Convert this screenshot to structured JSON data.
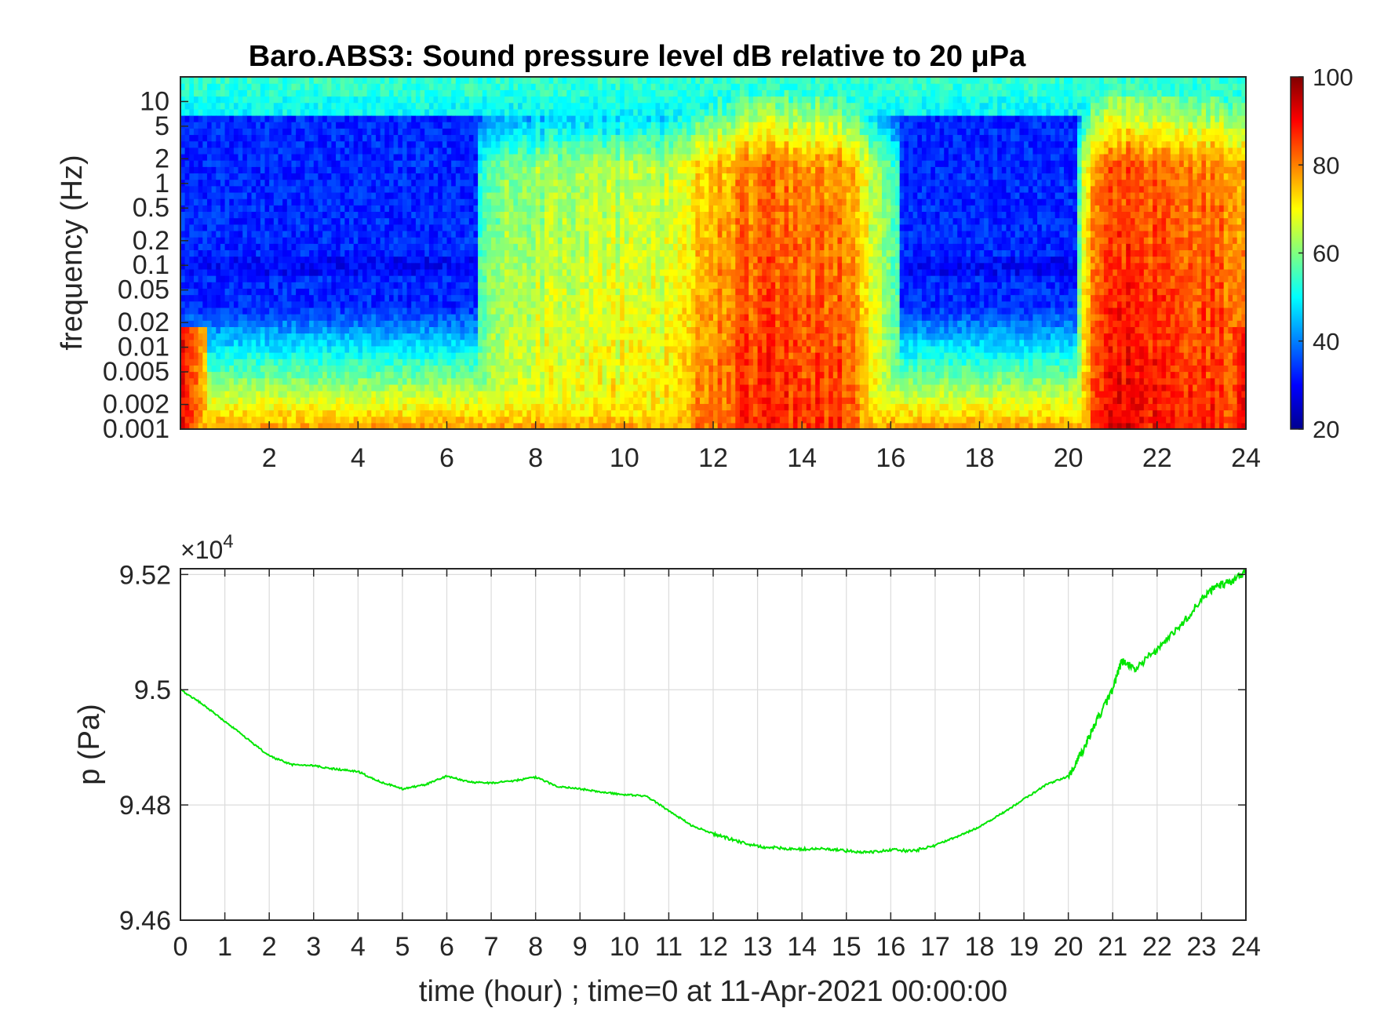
{
  "chart_data": [
    {
      "type": "heatmap",
      "title": "Baro.ABS3: Sound pressure level dB relative to 20 μPa",
      "xlabel": "",
      "ylabel": "frequency (Hz)",
      "xlim": [
        0,
        24
      ],
      "ylim": [
        0.001,
        20
      ],
      "yscale": "log",
      "x_ticks": [
        2,
        4,
        6,
        8,
        10,
        12,
        14,
        16,
        18,
        20,
        22,
        24
      ],
      "x_tick_labels": [
        "2",
        "4",
        "6",
        "8",
        "10",
        "12",
        "14",
        "16",
        "18",
        "20",
        "22",
        "24"
      ],
      "y_ticks": [
        0.001,
        0.002,
        0.005,
        0.01,
        0.02,
        0.05,
        0.1,
        0.2,
        0.5,
        1,
        2,
        5,
        10
      ],
      "y_tick_labels": [
        "0.001",
        "0.002",
        "0.005",
        "0.01",
        "0.02",
        "0.05",
        "0.1",
        "0.2",
        "0.5",
        "1",
        "2",
        "5",
        "10"
      ],
      "colormap": "jet",
      "colorbar": {
        "range": [
          20,
          100
        ],
        "ticks": [
          20,
          40,
          60,
          80,
          100
        ],
        "tick_labels": [
          "20",
          "40",
          "60",
          "80",
          "100"
        ],
        "placement": "right"
      },
      "activity_profile": {
        "description_hours": [
          0,
          0.3,
          1,
          3,
          5,
          6.5,
          6.8,
          7.5,
          9,
          11,
          12,
          13,
          14,
          15,
          16,
          16.6,
          17.5,
          19,
          20,
          20.5,
          21,
          22,
          23,
          24
        ],
        "level_dB": [
          42,
          42,
          42,
          43,
          42,
          42,
          62,
          68,
          70,
          72,
          82,
          88,
          86,
          86,
          62,
          50,
          42,
          42,
          42,
          85,
          92,
          90,
          88,
          84
        ]
      }
    },
    {
      "type": "line",
      "title": "",
      "xlabel": "time (hour) ; time=0 at 11-Apr-2021 00:00:00",
      "ylabel": "p (Pa)",
      "xlim": [
        0,
        24
      ],
      "ylim": [
        94600,
        95210
      ],
      "x_ticks": [
        0,
        1,
        2,
        3,
        4,
        5,
        6,
        7,
        8,
        9,
        10,
        11,
        12,
        13,
        14,
        15,
        16,
        17,
        18,
        19,
        20,
        21,
        22,
        23,
        24
      ],
      "x_tick_labels": [
        "0",
        "1",
        "2",
        "3",
        "4",
        "5",
        "6",
        "7",
        "8",
        "9",
        "10",
        "11",
        "12",
        "13",
        "14",
        "15",
        "16",
        "17",
        "18",
        "19",
        "20",
        "21",
        "22",
        "23",
        "24"
      ],
      "y_ticks": [
        94600,
        94800,
        95000,
        95200
      ],
      "y_tick_labels": [
        "9.46",
        "9.48",
        "9.5",
        "9.52"
      ],
      "exponent_prefix": "×10",
      "exponent_power": "4",
      "grid": true,
      "series": [
        {
          "color": "#00e600",
          "x": [
            0,
            0.5,
            1,
            1.5,
            2,
            2.5,
            3,
            3.5,
            4,
            4.5,
            5,
            5.5,
            6,
            6.5,
            7,
            7.5,
            8,
            8.5,
            9,
            9.5,
            10,
            10.5,
            11,
            11.5,
            12,
            12.5,
            13,
            13.5,
            14,
            14.5,
            15,
            15.5,
            16,
            16.5,
            17,
            17.5,
            18,
            18.5,
            19,
            19.5,
            20,
            20.3,
            20.6,
            21,
            21.2,
            21.5,
            22,
            22.5,
            23,
            23.3,
            23.6,
            24
          ],
          "y": [
            95000,
            94975,
            94945,
            94915,
            94885,
            94870,
            94868,
            94862,
            94858,
            94840,
            94828,
            94835,
            94850,
            94840,
            94838,
            94842,
            94848,
            94832,
            94828,
            94822,
            94818,
            94815,
            94790,
            94765,
            94750,
            94738,
            94728,
            94725,
            94723,
            94724,
            94720,
            94718,
            94722,
            94720,
            94730,
            94745,
            94762,
            94785,
            94810,
            94835,
            94850,
            94890,
            94940,
            95000,
            95050,
            95035,
            95070,
            95110,
            95155,
            95180,
            95185,
            95205
          ]
        }
      ]
    }
  ],
  "colors": {
    "trace": "#00e600",
    "axes": "#262626",
    "grid": "#dcdcdc"
  }
}
